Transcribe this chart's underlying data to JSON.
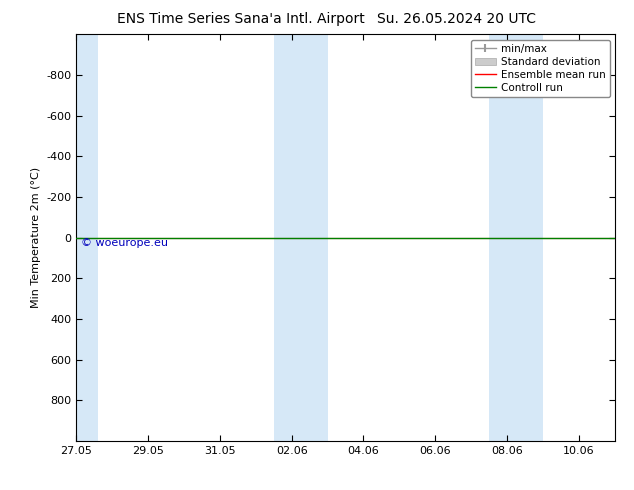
{
  "title_left": "ENS Time Series Sana'a Intl. Airport",
  "title_right": "Su. 26.05.2024 20 UTC",
  "ylabel": "Min Temperature 2m (°C)",
  "ylim_top": -1000,
  "ylim_bottom": 1000,
  "yticks": [
    -800,
    -600,
    -400,
    -200,
    0,
    200,
    400,
    600,
    800
  ],
  "xtick_labels": [
    "27.05",
    "29.05",
    "31.05",
    "02.06",
    "04.06",
    "06.06",
    "08.06",
    "10.06"
  ],
  "x_positions": [
    0,
    2,
    4,
    6,
    8,
    10,
    12,
    14
  ],
  "x_min": 0,
  "x_max": 15.0,
  "background_color": "#ffffff",
  "plot_background": "#ffffff",
  "shaded_bands": [
    {
      "x_start": -0.1,
      "x_end": 0.6
    },
    {
      "x_start": 5.5,
      "x_end": 7.0
    },
    {
      "x_start": 11.5,
      "x_end": 13.0
    }
  ],
  "shaded_color": "#d6e8f7",
  "green_line_y": 0,
  "red_line_y": 0,
  "watermark": "© woeurope.eu",
  "watermark_color": "#0000bb",
  "legend_entries": [
    {
      "label": "min/max",
      "color": "#999999",
      "lw": 1.0
    },
    {
      "label": "Standard deviation",
      "color": "#cccccc",
      "lw": 4
    },
    {
      "label": "Ensemble mean run",
      "color": "#ff0000",
      "lw": 1.0
    },
    {
      "label": "Controll run",
      "color": "#008000",
      "lw": 1.0
    }
  ],
  "font_size_title": 10,
  "font_size_axis": 8,
  "font_size_ticks": 8,
  "font_size_legend": 7.5,
  "font_size_watermark": 8
}
